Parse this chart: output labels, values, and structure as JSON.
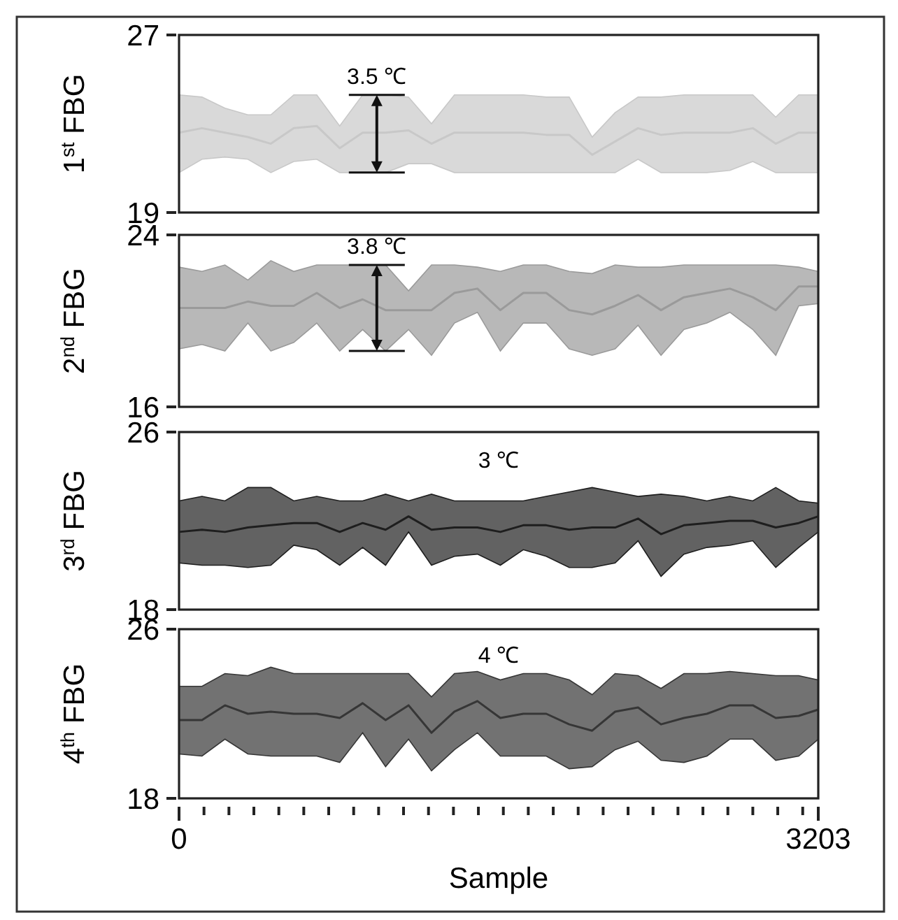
{
  "chart_data": [
    {
      "type": "line",
      "ylabel": "1$^{st}$ FBG",
      "xlim": [
        0,
        3203
      ],
      "ylim": [
        19,
        27
      ],
      "yticks": [
        19,
        27
      ],
      "tick_labels": "y",
      "x": [
        0,
        115,
        230,
        345,
        460,
        575,
        690,
        805,
        920,
        1035,
        1150,
        1265,
        1380,
        1495,
        1610,
        1725,
        1840,
        1955,
        2070,
        2185,
        2300,
        2415,
        2530,
        2645,
        2760,
        2875,
        2990,
        3105,
        3203
      ],
      "series": [
        {
          "color": "#c8c8c8",
          "values": [
            22.6,
            22.8,
            22.6,
            22.4,
            22.1,
            22.8,
            22.9,
            21.9,
            22.6,
            22.6,
            22.7,
            22.1,
            22.6,
            22.6,
            22.6,
            22.6,
            22.5,
            22.5,
            21.6,
            22.2,
            22.8,
            22.5,
            22.6,
            22.6,
            22.6,
            22.8,
            22.1,
            22.6,
            22.6
          ],
          "upper": [
            24.3,
            24.2,
            23.7,
            23.4,
            23.4,
            24.3,
            24.3,
            22.9,
            24.3,
            24.3,
            24.2,
            23.0,
            24.3,
            24.3,
            24.3,
            24.3,
            24.2,
            24.2,
            22.4,
            23.5,
            24.2,
            24.2,
            24.3,
            24.3,
            24.3,
            24.3,
            23.3,
            24.3,
            24.3
          ],
          "lower": [
            20.8,
            21.4,
            21.5,
            21.4,
            20.8,
            21.3,
            21.4,
            20.8,
            20.8,
            20.8,
            21.2,
            21.2,
            20.8,
            20.8,
            20.8,
            20.8,
            20.8,
            20.8,
            20.8,
            20.8,
            21.4,
            20.8,
            20.8,
            20.8,
            20.9,
            21.3,
            20.8,
            20.8,
            20.8
          ]
        }
      ],
      "annotations": [
        {
          "text": "3.5 ℃",
          "x": 991,
          "y": 24.3
        }
      ]
    },
    {
      "type": "line",
      "ylabel": "2$^{nd}$ FBG",
      "xlim": [
        0,
        3203
      ],
      "ylim": [
        16,
        24
      ],
      "yticks": [
        16,
        24
      ],
      "tick_labels": "y",
      "x": [
        0,
        115,
        230,
        345,
        460,
        575,
        690,
        805,
        920,
        1035,
        1150,
        1265,
        1380,
        1495,
        1610,
        1725,
        1840,
        1955,
        2070,
        2185,
        2300,
        2415,
        2530,
        2645,
        2760,
        2875,
        2990,
        3105,
        3203
      ],
      "series": [
        {
          "color": "#9a9a9a",
          "values": [
            20.6,
            20.6,
            20.6,
            20.9,
            20.7,
            20.7,
            21.3,
            20.6,
            21.0,
            20.5,
            20.5,
            20.5,
            21.3,
            21.5,
            20.5,
            21.3,
            21.3,
            20.5,
            20.3,
            20.7,
            21.2,
            20.5,
            21.1,
            21.3,
            21.5,
            21.1,
            20.5,
            21.6,
            21.6
          ],
          "upper": [
            22.5,
            22.3,
            22.6,
            21.9,
            22.8,
            22.3,
            22.6,
            22.6,
            22.6,
            22.6,
            21.4,
            22.6,
            22.6,
            22.5,
            22.3,
            22.6,
            22.6,
            22.3,
            22.2,
            22.6,
            22.5,
            22.5,
            22.6,
            22.6,
            22.6,
            22.6,
            22.6,
            22.5,
            22.3
          ],
          "lower": [
            18.7,
            18.9,
            18.6,
            19.9,
            18.6,
            19.0,
            19.9,
            18.6,
            19.6,
            18.6,
            19.6,
            18.4,
            19.9,
            20.4,
            18.6,
            19.9,
            19.9,
            18.7,
            18.4,
            18.7,
            19.8,
            18.4,
            19.6,
            19.9,
            20.4,
            19.6,
            18.4,
            20.7,
            20.8
          ]
        }
      ],
      "annotations": [
        {
          "text": "3.8 ℃",
          "x": 991,
          "y": 22.6
        }
      ]
    },
    {
      "type": "line",
      "ylabel": "3$^{rd}$ FBG",
      "xlim": [
        0,
        3203
      ],
      "ylim": [
        18,
        26
      ],
      "yticks": [
        18,
        26
      ],
      "tick_labels": "y",
      "x": [
        0,
        115,
        230,
        345,
        460,
        575,
        690,
        805,
        920,
        1035,
        1150,
        1265,
        1380,
        1495,
        1610,
        1725,
        1840,
        1955,
        2070,
        2185,
        2300,
        2415,
        2530,
        2645,
        2760,
        2875,
        2990,
        3105,
        3203
      ],
      "series": [
        {
          "color": "#1e1e1e",
          "values": [
            21.5,
            21.6,
            21.5,
            21.7,
            21.8,
            21.9,
            21.9,
            21.5,
            21.9,
            21.6,
            22.2,
            21.6,
            21.7,
            21.7,
            21.5,
            21.8,
            21.8,
            21.6,
            21.7,
            21.7,
            22.1,
            21.4,
            21.8,
            21.9,
            22.0,
            22.0,
            21.7,
            21.9,
            22.2
          ],
          "upper": [
            22.9,
            23.1,
            22.9,
            23.5,
            23.5,
            22.9,
            23.1,
            22.9,
            22.9,
            23.2,
            22.9,
            23.2,
            22.9,
            22.9,
            22.9,
            22.9,
            23.1,
            23.3,
            23.5,
            23.3,
            23.1,
            23.2,
            23.1,
            22.9,
            23.1,
            22.9,
            23.5,
            22.9,
            22.8
          ],
          "lower": [
            20.1,
            20.0,
            20.0,
            19.9,
            20.0,
            20.9,
            20.7,
            20.0,
            20.8,
            20.0,
            21.5,
            20.0,
            20.4,
            20.5,
            20.0,
            20.7,
            20.4,
            19.9,
            19.9,
            20.1,
            21.1,
            19.5,
            20.5,
            20.8,
            20.9,
            21.1,
            19.9,
            20.8,
            21.5
          ]
        }
      ],
      "annotations": [
        "3 ℃"
      ]
    },
    {
      "type": "line",
      "ylabel": "4$^{th}$ FBG",
      "xlabel": "Sample",
      "xlim": [
        0,
        3203
      ],
      "ylim": [
        18,
        26
      ],
      "yticks": [
        18,
        26
      ],
      "xticks": [
        {
          "value": 0,
          "label": "0"
        },
        {
          "value": 125,
          "label": null
        },
        {
          "value": 250,
          "label": null
        },
        {
          "value": 375,
          "label": null
        },
        {
          "value": 500,
          "label": null
        },
        {
          "value": 625,
          "label": null
        },
        {
          "value": 750,
          "label": null
        },
        {
          "value": 875,
          "label": null
        },
        {
          "value": 1000,
          "label": null
        },
        {
          "value": 1125,
          "label": null
        },
        {
          "value": 1250,
          "label": null
        },
        {
          "value": 1375,
          "label": null
        },
        {
          "value": 1500,
          "label": null
        },
        {
          "value": 1625,
          "label": null
        },
        {
          "value": 1750,
          "label": null
        },
        {
          "value": 1875,
          "label": null
        },
        {
          "value": 2000,
          "label": null
        },
        {
          "value": 2125,
          "label": null
        },
        {
          "value": 2250,
          "label": null
        },
        {
          "value": 2375,
          "label": null
        },
        {
          "value": 2500,
          "label": null
        },
        {
          "value": 2625,
          "label": null
        },
        {
          "value": 2750,
          "label": null
        },
        {
          "value": 2875,
          "label": null
        },
        {
          "value": 3000,
          "label": null
        },
        {
          "value": 3125,
          "label": null
        },
        {
          "value": 3203,
          "label": "3203"
        }
      ],
      "x": [
        0,
        115,
        230,
        345,
        460,
        575,
        690,
        805,
        920,
        1035,
        1150,
        1265,
        1380,
        1495,
        1610,
        1725,
        1840,
        1955,
        2070,
        2185,
        2300,
        2415,
        2530,
        2645,
        2760,
        2875,
        2990,
        3105,
        3203
      ],
      "series": [
        {
          "color": "#363636",
          "values": [
            21.7,
            21.7,
            22.4,
            22.0,
            22.1,
            22.0,
            22.0,
            21.8,
            22.5,
            21.7,
            22.4,
            21.1,
            22.1,
            22.6,
            21.8,
            22.0,
            22.0,
            21.5,
            21.2,
            22.1,
            22.3,
            21.5,
            21.8,
            22.0,
            22.4,
            22.4,
            21.8,
            21.9,
            22.2
          ],
          "upper": [
            23.3,
            23.3,
            23.9,
            23.8,
            24.2,
            23.9,
            23.9,
            23.9,
            23.9,
            23.9,
            23.9,
            22.8,
            23.9,
            24.0,
            23.6,
            23.9,
            23.9,
            23.6,
            22.9,
            23.9,
            23.8,
            23.2,
            23.9,
            23.9,
            24.0,
            23.9,
            23.8,
            23.8,
            23.6
          ],
          "lower": [
            20.1,
            20.0,
            20.8,
            20.1,
            20.0,
            20.0,
            20.0,
            19.7,
            21.1,
            19.5,
            20.8,
            19.3,
            20.3,
            21.1,
            20.0,
            20.0,
            20.0,
            19.4,
            19.5,
            20.3,
            20.7,
            19.8,
            19.7,
            20.0,
            20.8,
            20.8,
            19.8,
            20.0,
            20.8
          ]
        }
      ],
      "annotations": [
        "4 ℃"
      ]
    }
  ]
}
